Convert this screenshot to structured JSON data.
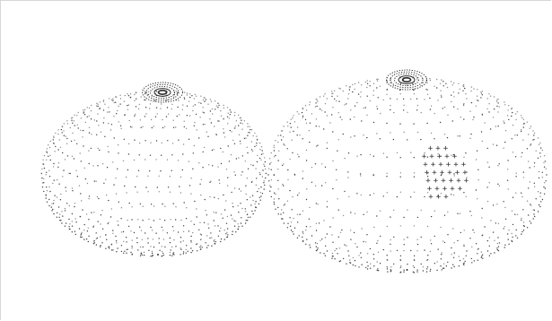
{
  "figure": {
    "type": "point-cloud",
    "background": "#ffffff",
    "frame_border": "#d6d6d6",
    "point_color": "#2a2a2a",
    "marker_color": "#333333",
    "lobes": [
      {
        "name": "left",
        "lat_rings": 22,
        "points_per_ring": 64
      },
      {
        "name": "right",
        "lat_rings": 22,
        "points_per_ring": 64
      }
    ],
    "marker_symbol": "+",
    "marker_grid": {
      "rows": 7,
      "cols": 6
    }
  }
}
